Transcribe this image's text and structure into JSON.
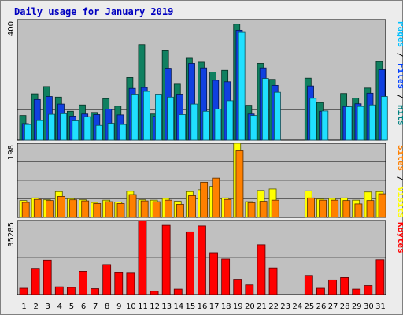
{
  "chart_data": {
    "type": "bar",
    "title": "Daily usage for January 2019",
    "categories": [
      "1",
      "2",
      "3",
      "4",
      "5",
      "6",
      "7",
      "8",
      "9",
      "10",
      "11",
      "12",
      "13",
      "14",
      "15",
      "16",
      "17",
      "18",
      "19",
      "20",
      "21",
      "22",
      "23",
      "24",
      "25",
      "26",
      "27",
      "28",
      "29",
      "30",
      "31"
    ],
    "weekend_days": [
      "5",
      "6",
      "12",
      "13",
      "19",
      "20",
      "26",
      "27"
    ],
    "panels": [
      {
        "name": "pages-files-hits",
        "ymax_label": "400",
        "ymax": 400,
        "right_label_parts": [
          {
            "text": "Pages",
            "color": "#00c0ff"
          },
          {
            "text": " / ",
            "color": "#000000"
          },
          {
            "text": "Files",
            "color": "#0040ff"
          },
          {
            "text": " / ",
            "color": "#000000"
          },
          {
            "text": "Hits",
            "color": "#008080"
          }
        ],
        "series": [
          {
            "name": "Hits",
            "color": "#108060",
            "values": [
              82,
              154,
              178,
              143,
              96,
              117,
              92,
              138,
              113,
              208,
              317,
              87,
              297,
              186,
              272,
              259,
              226,
              232,
              385,
              116,
              255,
              202,
              0,
              0,
              206,
              125,
              0,
              155,
              140,
              173,
              261
            ]
          },
          {
            "name": "Files",
            "color": "#1040e0",
            "values": [
              55,
              135,
              145,
              120,
              80,
              87,
              85,
              103,
              84,
              172,
              175,
              79,
              239,
              153,
              255,
              240,
              199,
              194,
              365,
              87,
              240,
              182,
              0,
              0,
              180,
              96,
              0,
              112,
              121,
              156,
              234
            ]
          },
          {
            "name": "Pages",
            "color": "#20e0ff",
            "values": [
              52,
              65,
              86,
              88,
              64,
              78,
              49,
              56,
              52,
              153,
              162,
              153,
              143,
              85,
              120,
              96,
              103,
              131,
              358,
              82,
              205,
              159,
              0,
              0,
              139,
              97,
              0,
              111,
              112,
              117,
              145
            ]
          }
        ]
      },
      {
        "name": "sites-visits",
        "ymax_label": "198",
        "ymax": 198,
        "right_label_parts": [
          {
            "text": "Sites",
            "color": "#ff8000"
          },
          {
            "text": " / ",
            "color": "#000000"
          },
          {
            "text": "Visits",
            "color": "#ffff00"
          }
        ],
        "series": [
          {
            "name": "Visits",
            "color": "#ffff00",
            "values": [
              45,
              52,
              47,
              69,
              50,
              47,
              40,
              46,
              41,
              70,
              47,
              46,
              51,
              43,
              69,
              74,
              83,
              52,
              198,
              42,
              72,
              76,
              0,
              0,
              71,
              49,
              51,
              52,
              46,
              68,
              69
            ]
          },
          {
            "name": "Sites",
            "color": "#ff8000",
            "values": [
              40,
              48,
              45,
              56,
              47,
              44,
              37,
              42,
              37,
              61,
              44,
              42,
              46,
              35,
              58,
              94,
              105,
              48,
              178,
              39,
              43,
              46,
              0,
              0,
              52,
              46,
              46,
              45,
              36,
              45,
              63
            ]
          }
        ]
      },
      {
        "name": "kbytes",
        "ymax_label": "35285",
        "ymax": 35285,
        "right_label_parts": [
          {
            "text": "KBytes",
            "color": "#ff0000"
          }
        ],
        "series": [
          {
            "name": "KBytes",
            "color": "#ff0000",
            "values": [
              3000,
              12500,
              16400,
              3700,
              3400,
              11100,
              2800,
              14300,
              10400,
              10200,
              35285,
              1600,
              33000,
              2600,
              29900,
              32700,
              19900,
              16900,
              7300,
              4600,
              23700,
              12700,
              0,
              0,
              9100,
              3000,
              7000,
              8100,
              2600,
              4300,
              16600
            ]
          }
        ]
      }
    ]
  }
}
